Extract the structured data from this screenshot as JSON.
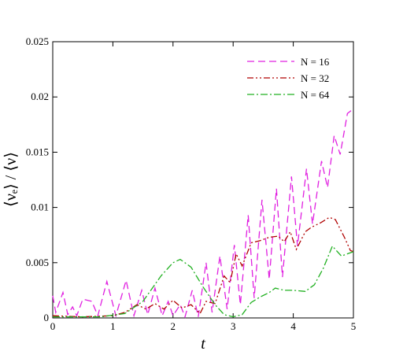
{
  "chart_data": {
    "type": "line",
    "x_label": "t",
    "y_label": "⟨νₑ⟩ / ⟨ν⟩",
    "xlim": [
      0,
      5
    ],
    "xticks": [
      0,
      1,
      2,
      3,
      4,
      5
    ],
    "ylim": [
      0,
      0.025
    ],
    "yticks": [
      0,
      0.005,
      0.01,
      0.015,
      0.02,
      0.025
    ],
    "legend": "upper right",
    "series": [
      {
        "name": "N = 16",
        "color": "#e020e0",
        "dash": "9 5",
        "x": [
          0,
          0.05,
          0.17,
          0.25,
          0.33,
          0.4,
          0.5,
          0.65,
          0.75,
          0.9,
          1.05,
          1.22,
          1.35,
          1.48,
          1.58,
          1.7,
          1.82,
          1.92,
          2.0,
          2.12,
          2.2,
          2.32,
          2.42,
          2.55,
          2.65,
          2.78,
          2.9,
          3.02,
          3.12,
          3.25,
          3.35,
          3.48,
          3.6,
          3.72,
          3.82,
          3.97,
          4.07,
          4.22,
          4.32,
          4.47,
          4.57,
          4.68,
          4.78,
          4.9,
          4.97,
          5.0
        ],
        "values": [
          0.002,
          0.0005,
          0.0023,
          0.0003,
          0.001,
          0.0002,
          0.0017,
          0.0015,
          0.0002,
          0.0033,
          0.0002,
          0.0034,
          0.0002,
          0.0025,
          0.0003,
          0.0027,
          0.0002,
          0.0015,
          0.0002,
          0.0012,
          0.0001,
          0.0025,
          0.0001,
          0.005,
          0.0005,
          0.0056,
          0.0008,
          0.0066,
          0.0012,
          0.0093,
          0.0018,
          0.0107,
          0.0035,
          0.0117,
          0.0037,
          0.0128,
          0.0065,
          0.0135,
          0.0085,
          0.0142,
          0.0118,
          0.0165,
          0.0148,
          0.0185,
          0.0188,
          0.0186
        ]
      },
      {
        "name": "N = 32",
        "color": "#b00000",
        "dash": "8 3 2 3 2 3",
        "x": [
          0,
          0.5,
          1.0,
          1.2,
          1.4,
          1.55,
          1.7,
          1.85,
          2.0,
          2.15,
          2.3,
          2.45,
          2.55,
          2.7,
          2.85,
          2.95,
          3.05,
          3.15,
          3.3,
          3.45,
          3.6,
          3.75,
          3.85,
          3.95,
          4.05,
          4.2,
          4.3,
          4.45,
          4.6,
          4.7,
          4.85,
          4.95,
          5.0
        ],
        "values": [
          0.0002,
          0.0001,
          0.0002,
          0.0005,
          0.0012,
          0.0008,
          0.0013,
          0.0008,
          0.0016,
          0.0009,
          0.0012,
          0.0004,
          0.0015,
          0.0013,
          0.0038,
          0.0032,
          0.0058,
          0.0047,
          0.0068,
          0.007,
          0.0073,
          0.0074,
          0.0069,
          0.0078,
          0.0062,
          0.0078,
          0.0082,
          0.0086,
          0.0091,
          0.0089,
          0.0073,
          0.0061,
          0.006
        ]
      },
      {
        "name": "N = 64",
        "color": "#20b020",
        "dash": "9 3 2 3",
        "x": [
          0,
          0.8,
          1.2,
          1.5,
          1.8,
          2.0,
          2.12,
          2.3,
          2.5,
          2.7,
          2.85,
          3.0,
          3.15,
          3.3,
          3.45,
          3.6,
          3.7,
          3.85,
          4.0,
          4.2,
          4.35,
          4.5,
          4.65,
          4.8,
          5.0
        ],
        "values": [
          0.0001,
          0.0001,
          0.0004,
          0.0015,
          0.0038,
          0.005,
          0.0053,
          0.0046,
          0.0028,
          0.0012,
          0.0003,
          0.0001,
          0.0003,
          0.0014,
          0.0019,
          0.0023,
          0.0027,
          0.0025,
          0.0025,
          0.0024,
          0.003,
          0.0045,
          0.0065,
          0.0056,
          0.006
        ]
      }
    ]
  }
}
